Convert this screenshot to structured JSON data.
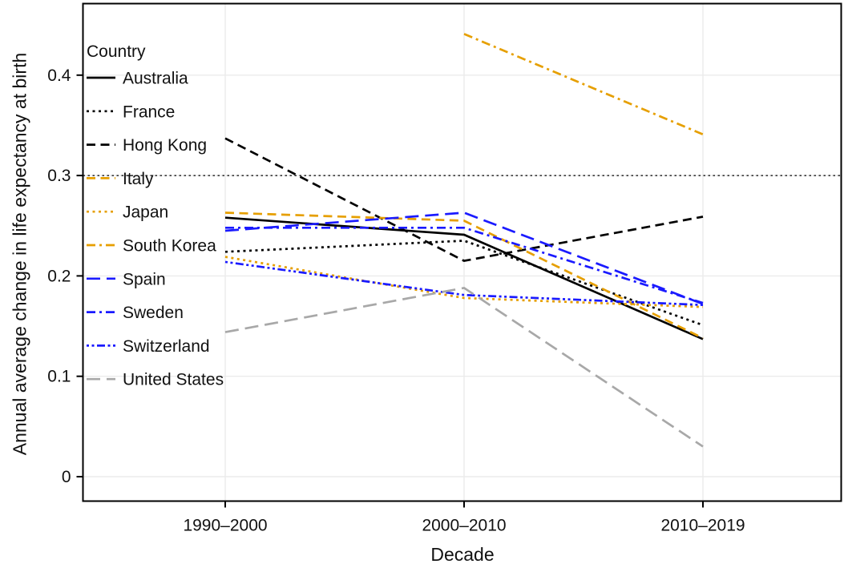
{
  "chart_data": {
    "type": "line",
    "title": "",
    "xlabel": "Decade",
    "ylabel": "Annual average change in life expectancy at birth",
    "legend_title": "Country",
    "legend_position": "inside-top-left",
    "categories": [
      "1990–2000",
      "2000–2010",
      "2010–2019"
    ],
    "yticks": [
      0,
      0.1,
      0.2,
      0.3,
      0.4
    ],
    "ytick_labels": [
      "0",
      "0.1",
      "0.2",
      "0.3",
      "0.4"
    ],
    "ylim": [
      -0.024,
      0.472
    ],
    "grid": true,
    "reference_line": {
      "value": 0.3,
      "style": "dotted",
      "color": "#000000"
    },
    "palette": {
      "black": "#000000",
      "orange": "#E69F00",
      "blue": "#1A1AFF",
      "gray": "#A8A8A8"
    },
    "series": [
      {
        "name": "Australia",
        "color": "#000000",
        "linestyle": "solid",
        "values": [
          0.258,
          0.241,
          0.137
        ]
      },
      {
        "name": "France",
        "color": "#000000",
        "linestyle": "dotted",
        "values": [
          0.224,
          0.235,
          0.151
        ]
      },
      {
        "name": "Hong Kong",
        "color": "#000000",
        "linestyle": "dashed",
        "values": [
          0.337,
          0.215,
          0.259
        ]
      },
      {
        "name": "Italy",
        "color": "#E69F00",
        "linestyle": "dashed",
        "values": [
          0.263,
          0.255,
          0.138
        ]
      },
      {
        "name": "Japan",
        "color": "#E69F00",
        "linestyle": "dotted",
        "values": [
          0.219,
          0.178,
          0.169
        ]
      },
      {
        "name": "South Korea",
        "color": "#E69F00",
        "linestyle": "dashdot",
        "values": [
          null,
          0.441,
          0.341
        ]
      },
      {
        "name": "Spain",
        "color": "#1A1AFF",
        "linestyle": "longdash",
        "values": [
          0.245,
          0.263,
          0.172
        ]
      },
      {
        "name": "Sweden",
        "color": "#1A1AFF",
        "linestyle": "dashdot",
        "values": [
          0.248,
          0.248,
          0.173
        ]
      },
      {
        "name": "Switzerland",
        "color": "#1A1AFF",
        "linestyle": "dotdotdash",
        "values": [
          0.214,
          0.181,
          0.171
        ]
      },
      {
        "name": "United States",
        "color": "#A8A8A8",
        "linestyle": "longdash",
        "values": [
          0.144,
          0.188,
          0.03
        ]
      }
    ]
  }
}
